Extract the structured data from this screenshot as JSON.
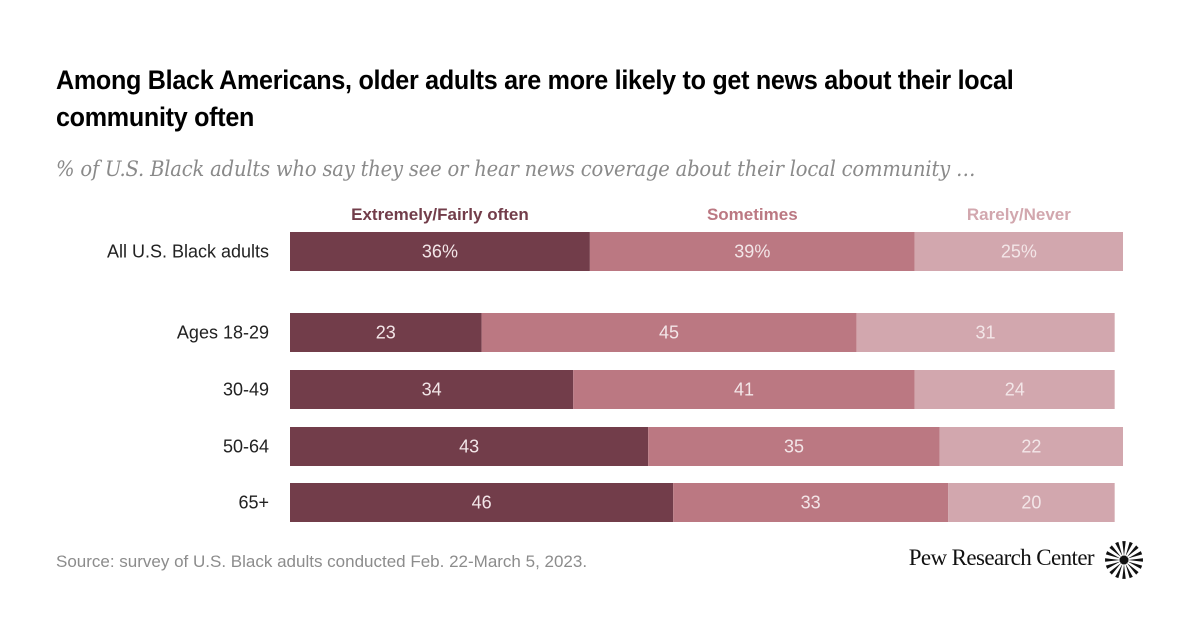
{
  "header": {
    "title": "Among Black Americans, older adults are more likely to get news about their local community often",
    "subtitle": "% of U.S. Black adults who say they see or hear news coverage about their local community …"
  },
  "footer": {
    "source": "Source: survey of U.S. Black adults conducted Feb. 22-March 5, 2023.",
    "brand": "Pew Research Center",
    "logo_icon": "pew-sunburst-icon"
  },
  "colors": {
    "extremely_fairly_often": "#723d4a",
    "sometimes": "#bb7882",
    "rarely_never": "#d2a7ae",
    "value_text": "#f3e6e8"
  },
  "chart_data": {
    "type": "bar",
    "orientation": "horizontal",
    "stacked": true,
    "title": "Among Black Americans, older adults are more likely to get news about their local community often",
    "subtitle": "% of U.S. Black adults who say they see or hear news coverage about their local community …",
    "xlabel": "",
    "ylabel": "",
    "xlim": [
      0,
      100
    ],
    "grid": false,
    "legend_position": "top",
    "categories": [
      "All U.S. Black adults",
      "Ages 18-29",
      "30-49",
      "50-64",
      "65+"
    ],
    "value_labels": [
      [
        "36%",
        "39%",
        "25%"
      ],
      [
        "23",
        "45",
        "31"
      ],
      [
        "34",
        "41",
        "24"
      ],
      [
        "43",
        "35",
        "22"
      ],
      [
        "46",
        "33",
        "20"
      ]
    ],
    "series": [
      {
        "name": "Extremely/Fairly often",
        "values": [
          36,
          23,
          34,
          43,
          46
        ]
      },
      {
        "name": "Sometimes",
        "values": [
          39,
          45,
          41,
          35,
          33
        ]
      },
      {
        "name": "Rarely/Never",
        "values": [
          25,
          31,
          24,
          22,
          20
        ]
      }
    ]
  }
}
